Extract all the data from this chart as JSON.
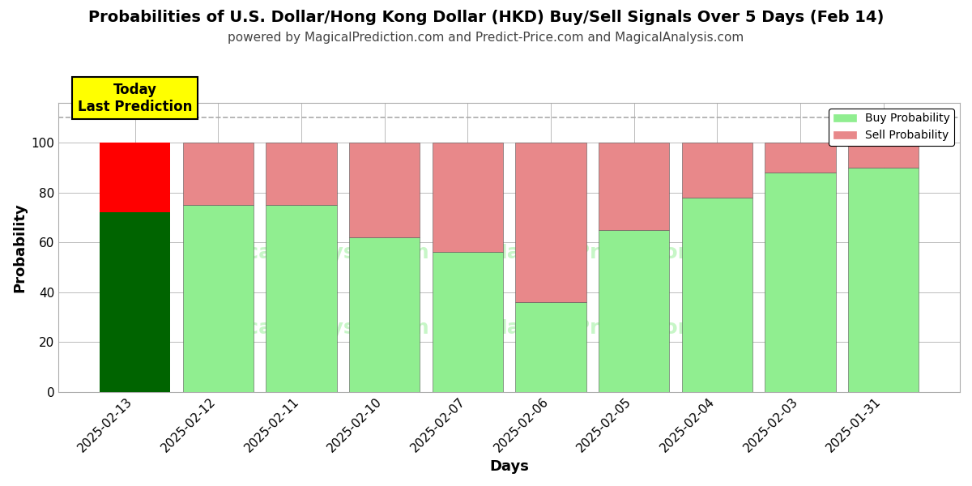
{
  "title": "Probabilities of U.S. Dollar/Hong Kong Dollar (HKD) Buy/Sell Signals Over 5 Days (Feb 14)",
  "subtitle": "powered by MagicalPrediction.com and Predict-Price.com and MagicalAnalysis.com",
  "xlabel": "Days",
  "ylabel": "Probability",
  "dates": [
    "2025-02-13",
    "2025-02-12",
    "2025-02-11",
    "2025-02-10",
    "2025-02-07",
    "2025-02-06",
    "2025-02-05",
    "2025-02-04",
    "2025-02-03",
    "2025-01-31"
  ],
  "buy_values": [
    72,
    75,
    75,
    62,
    56,
    36,
    65,
    78,
    88,
    90
  ],
  "sell_values": [
    28,
    25,
    25,
    38,
    44,
    64,
    35,
    22,
    12,
    10
  ],
  "buy_color_normal": "#90EE90",
  "sell_color_normal": "#E8888A",
  "buy_color_today": "#006400",
  "sell_color_today": "#FF0000",
  "dashed_line_y": 110,
  "ylim": [
    0,
    116
  ],
  "yticks": [
    0,
    20,
    40,
    60,
    80,
    100
  ],
  "legend_buy_label": "Buy Probability",
  "legend_sell_label": "Sell Probability",
  "today_box_label": "Today\nLast Prediction",
  "today_box_color": "#FFFF00",
  "background_color": "#ffffff",
  "grid_color": "#bbbbbb",
  "bar_width": 0.85,
  "title_fontsize": 14,
  "subtitle_fontsize": 11,
  "axis_label_fontsize": 13,
  "tick_fontsize": 11
}
